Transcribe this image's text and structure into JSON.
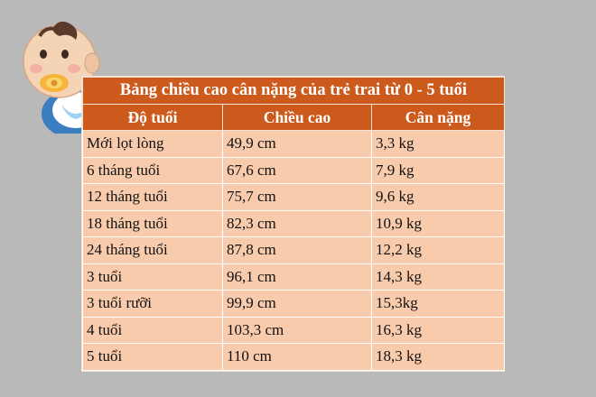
{
  "table": {
    "title": "Bảng chiều cao cân nặng của trẻ trai từ 0 - 5 tuổi",
    "headers": [
      "Độ tuổi",
      "Chiều cao",
      "Cân nặng"
    ],
    "rows": [
      [
        "Mới lọt lòng",
        "49,9 cm",
        "3,3 kg"
      ],
      [
        "6 tháng tuổi",
        "67,6 cm",
        "7,9 kg"
      ],
      [
        "12 tháng tuổi",
        "75,7 cm",
        "9,6 kg"
      ],
      [
        "18 tháng tuổi",
        "82,3 cm",
        "10,9 kg"
      ],
      [
        "24 tháng tuổi",
        "87,8 cm",
        "12,2 kg"
      ],
      [
        "3 tuổi",
        "96,1 cm",
        "14,3 kg"
      ],
      [
        "3 tuổi rưỡi",
        "99,9 cm",
        "15,3kg"
      ],
      [
        "4 tuổi",
        "103,3 cm",
        "16,3 kg"
      ],
      [
        "5 tuổi",
        "110 cm",
        "18,3 kg"
      ]
    ]
  },
  "colors": {
    "background": "#b9b9b9",
    "header_fill": "#cc5a1c",
    "cell_fill": "#f8cbad"
  },
  "icons": {
    "baby": "baby-icon"
  }
}
